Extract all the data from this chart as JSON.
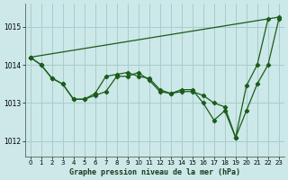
{
  "title": "Graphe pression niveau de la mer (hPa)",
  "background_color": "#cce8e8",
  "grid_color": "#aacccc",
  "line_color": "#1a5c1a",
  "xlim": [
    -0.5,
    23.5
  ],
  "ylim": [
    1011.6,
    1015.6
  ],
  "yticks": [
    1012,
    1013,
    1014,
    1015
  ],
  "xticks": [
    0,
    1,
    2,
    3,
    4,
    5,
    6,
    7,
    8,
    9,
    10,
    11,
    12,
    13,
    14,
    15,
    16,
    17,
    18,
    19,
    20,
    21,
    22,
    23
  ],
  "series": [
    {
      "x": [
        0,
        1,
        2,
        3,
        4,
        5,
        6,
        7,
        8,
        9,
        10,
        11,
        12,
        13,
        14,
        15,
        16,
        17,
        18,
        19,
        20,
        21,
        22,
        23
      ],
      "y": [
        1014.2,
        1014.0,
        1013.65,
        1013.5,
        1013.1,
        1013.1,
        1013.25,
        1013.7,
        1013.75,
        1013.8,
        1013.7,
        1013.65,
        1013.35,
        1013.25,
        1013.35,
        1013.35,
        1013.0,
        1012.55,
        1012.8,
        1012.1,
        1013.45,
        1014.0,
        1015.2,
        null
      ]
    },
    {
      "x": [
        0,
        1,
        2,
        3,
        4,
        5,
        6,
        7,
        8,
        9,
        10,
        11,
        12,
        13,
        14,
        15,
        16,
        17,
        18,
        19,
        20,
        21,
        22,
        23
      ],
      "y": [
        1014.2,
        1014.0,
        1013.65,
        1013.5,
        1013.1,
        1013.1,
        1013.2,
        1013.3,
        1013.7,
        1013.7,
        1013.8,
        1013.6,
        1013.3,
        1013.25,
        1013.3,
        1013.3,
        1013.2,
        1013.0,
        1012.9,
        1012.1,
        1012.8,
        1013.5,
        1014.0,
        1015.2
      ]
    },
    {
      "x": [
        0,
        23
      ],
      "y": [
        1014.2,
        1015.25
      ]
    }
  ]
}
